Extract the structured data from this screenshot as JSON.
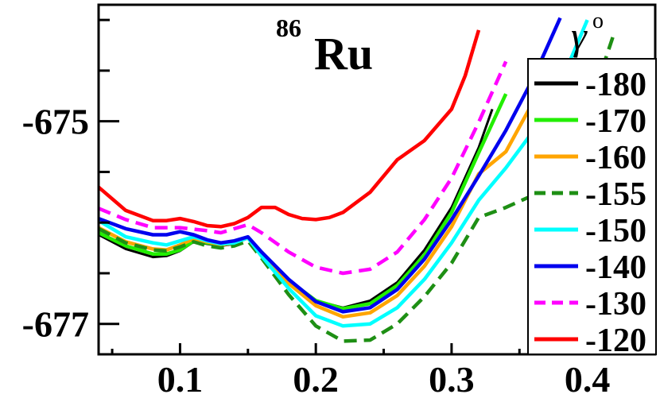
{
  "chart_data": {
    "type": "line",
    "title": "Ru",
    "title_superscript": "86",
    "legend_title": "γ",
    "legend_title_superscript": "o",
    "xlabel": "",
    "ylabel": "",
    "xlim": [
      0.04,
      0.45
    ],
    "ylim": [
      -677.3,
      -673.85
    ],
    "x_ticks": [
      "0.1",
      "0.2",
      "0.3",
      "0.4"
    ],
    "y_ticks": [
      "-675",
      "-677"
    ],
    "legend_position": "right",
    "grid": false,
    "series": [
      {
        "name": "-180",
        "color": "#000000",
        "dash": false,
        "x": [
          0.04,
          0.06,
          0.08,
          0.09,
          0.1,
          0.11,
          0.12,
          0.13,
          0.14,
          0.15,
          0.16,
          0.18,
          0.2,
          0.22,
          0.24,
          0.26,
          0.28,
          0.3,
          0.32,
          0.33
        ],
        "y": [
          -676.12,
          -676.26,
          -676.34,
          -676.33,
          -676.28,
          -676.19,
          -676.21,
          -676.23,
          -676.21,
          -676.15,
          -676.3,
          -676.56,
          -676.77,
          -676.84,
          -676.77,
          -676.59,
          -676.27,
          -675.85,
          -675.26,
          -674.88
        ]
      },
      {
        "name": "-170",
        "color": "#22ee00",
        "dash": false,
        "x": [
          0.04,
          0.06,
          0.08,
          0.09,
          0.1,
          0.11,
          0.12,
          0.13,
          0.14,
          0.15,
          0.16,
          0.18,
          0.2,
          0.22,
          0.24,
          0.26,
          0.28,
          0.3,
          0.32,
          0.34
        ],
        "y": [
          -676.1,
          -676.23,
          -676.31,
          -676.31,
          -676.27,
          -676.18,
          -676.2,
          -676.22,
          -676.2,
          -676.15,
          -676.31,
          -676.57,
          -676.77,
          -676.85,
          -676.8,
          -676.62,
          -676.32,
          -675.9,
          -675.31,
          -674.73
        ]
      },
      {
        "name": "-160",
        "color": "#ffa500",
        "dash": false,
        "x": [
          0.04,
          0.06,
          0.08,
          0.09,
          0.1,
          0.11,
          0.12,
          0.13,
          0.14,
          0.15,
          0.16,
          0.18,
          0.2,
          0.22,
          0.24,
          0.26,
          0.28,
          0.3,
          0.32,
          0.34,
          0.36
        ],
        "y": [
          -676.05,
          -676.19,
          -676.26,
          -676.27,
          -676.22,
          -676.16,
          -676.19,
          -676.22,
          -676.2,
          -676.15,
          -676.33,
          -676.6,
          -676.82,
          -676.93,
          -676.89,
          -676.72,
          -676.43,
          -676.04,
          -675.52,
          -675.3,
          -674.81
        ]
      },
      {
        "name": "-155",
        "color": "#1e8f14",
        "dash": true,
        "x": [
          0.04,
          0.06,
          0.08,
          0.09,
          0.1,
          0.11,
          0.12,
          0.13,
          0.14,
          0.15,
          0.16,
          0.18,
          0.2,
          0.22,
          0.24,
          0.26,
          0.28,
          0.3,
          0.32,
          0.34,
          0.36,
          0.38,
          0.4,
          0.42
        ],
        "y": [
          -676.06,
          -676.2,
          -676.27,
          -676.28,
          -676.24,
          -676.19,
          -676.23,
          -676.25,
          -676.23,
          -676.18,
          -676.35,
          -676.71,
          -677.02,
          -677.17,
          -677.16,
          -677.0,
          -676.73,
          -676.4,
          -675.95,
          -675.85,
          -675.73,
          -675.4,
          -674.92,
          -674.12
        ]
      },
      {
        "name": "-150",
        "color": "#00ffff",
        "dash": false,
        "x": [
          0.04,
          0.06,
          0.08,
          0.09,
          0.1,
          0.11,
          0.12,
          0.13,
          0.14,
          0.15,
          0.16,
          0.18,
          0.2,
          0.22,
          0.24,
          0.26,
          0.28,
          0.3,
          0.32,
          0.34,
          0.36,
          0.38,
          0.4
        ],
        "y": [
          -675.98,
          -676.14,
          -676.2,
          -676.22,
          -676.18,
          -676.14,
          -676.18,
          -676.21,
          -676.2,
          -676.15,
          -676.33,
          -676.65,
          -676.92,
          -677.02,
          -677.0,
          -676.84,
          -676.56,
          -676.2,
          -675.78,
          -675.46,
          -675.1,
          -674.63,
          -674.0
        ]
      },
      {
        "name": "-140",
        "color": "#0000ee",
        "dash": false,
        "x": [
          0.04,
          0.06,
          0.08,
          0.09,
          0.1,
          0.11,
          0.12,
          0.13,
          0.14,
          0.15,
          0.16,
          0.18,
          0.2,
          0.22,
          0.24,
          0.26,
          0.28,
          0.3,
          0.32,
          0.34,
          0.36,
          0.38
        ],
        "y": [
          -675.96,
          -676.06,
          -676.12,
          -676.12,
          -676.09,
          -676.12,
          -676.17,
          -676.2,
          -676.18,
          -676.14,
          -676.29,
          -676.56,
          -676.78,
          -676.88,
          -676.84,
          -676.66,
          -676.36,
          -675.97,
          -675.54,
          -675.09,
          -674.58,
          -673.98
        ]
      },
      {
        "name": "-130",
        "color": "#ff00ff",
        "dash": true,
        "x": [
          0.04,
          0.06,
          0.08,
          0.1,
          0.12,
          0.13,
          0.14,
          0.15,
          0.16,
          0.18,
          0.2,
          0.22,
          0.24,
          0.26,
          0.28,
          0.3,
          0.32,
          0.34
        ],
        "y": [
          -675.86,
          -675.97,
          -676.05,
          -676.05,
          -676.08,
          -676.1,
          -676.06,
          -676.02,
          -676.1,
          -676.29,
          -676.44,
          -676.5,
          -676.46,
          -676.29,
          -675.97,
          -675.56,
          -675.01,
          -674.41
        ]
      },
      {
        "name": "-120",
        "color": "#ff0000",
        "dash": false,
        "x": [
          0.04,
          0.06,
          0.08,
          0.09,
          0.1,
          0.11,
          0.12,
          0.13,
          0.14,
          0.15,
          0.16,
          0.17,
          0.18,
          0.19,
          0.2,
          0.21,
          0.22,
          0.24,
          0.26,
          0.28,
          0.3,
          0.31,
          0.32
        ],
        "y": [
          -675.65,
          -675.88,
          -675.98,
          -675.98,
          -675.96,
          -675.99,
          -676.03,
          -676.04,
          -676.01,
          -675.95,
          -675.85,
          -675.85,
          -675.92,
          -675.96,
          -675.97,
          -675.95,
          -675.9,
          -675.7,
          -675.38,
          -675.19,
          -674.88,
          -674.55,
          -674.1
        ]
      }
    ]
  }
}
